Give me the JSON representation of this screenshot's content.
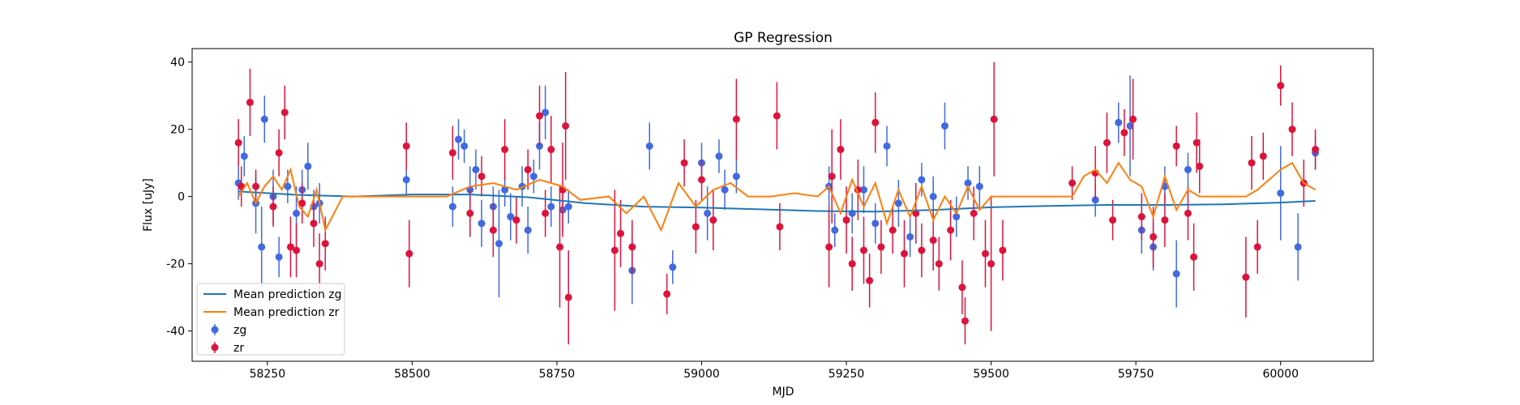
{
  "chart_data": {
    "type": "scatter",
    "title": "GP Regression",
    "xlabel": "MJD",
    "ylabel": "Flux [uJy]",
    "xlim": [
      58120,
      60160
    ],
    "ylim": [
      -49,
      44
    ],
    "xticks": [
      58250,
      58500,
      58750,
      59000,
      59250,
      59500,
      59750,
      60000
    ],
    "yticks": [
      -40,
      -20,
      0,
      20,
      40
    ],
    "grid": false,
    "legend_position": "lower-left",
    "series": [
      {
        "name": "Mean prediction zg",
        "kind": "line",
        "color": "#1f77b4",
        "x": [
          58200,
          58300,
          58400,
          58500,
          58600,
          58700,
          58800,
          58900,
          59000,
          59100,
          59200,
          59300,
          59400,
          59500,
          59600,
          59700,
          59800,
          59900,
          60000,
          60060
        ],
        "y": [
          1.5,
          0.5,
          0.0,
          0.6,
          0.6,
          -0.2,
          -2.0,
          -3.0,
          -3.3,
          -3.8,
          -4.3,
          -4.5,
          -4.0,
          -3.2,
          -2.8,
          -2.5,
          -2.5,
          -2.3,
          -1.8,
          -1.3
        ]
      },
      {
        "name": "Mean prediction zr",
        "kind": "line",
        "color": "#ff7f0e",
        "x": [
          58200,
          58215,
          58230,
          58245,
          58260,
          58275,
          58290,
          58305,
          58320,
          58335,
          58350,
          58380,
          58480,
          58560,
          58600,
          58640,
          58680,
          58720,
          58760,
          58790,
          58840,
          58870,
          58900,
          58930,
          58960,
          58990,
          59020,
          59050,
          59080,
          59120,
          59160,
          59200,
          59220,
          59240,
          59260,
          59280,
          59300,
          59320,
          59340,
          59360,
          59380,
          59400,
          59420,
          59440,
          59460,
          59480,
          59500,
          59530,
          59600,
          59640,
          59660,
          59680,
          59700,
          59720,
          59740,
          59760,
          59780,
          59800,
          59820,
          59840,
          59860,
          59880,
          59940,
          59960,
          60000,
          60020,
          60040,
          60060
        ],
        "y": [
          0,
          4,
          -2,
          3,
          6,
          2,
          8,
          -3,
          -6,
          2,
          -10,
          0,
          0,
          0,
          3,
          4,
          2,
          5,
          3,
          -1,
          0,
          -5,
          0,
          -10,
          4,
          -3,
          2,
          4,
          0,
          0,
          1,
          0,
          3,
          -5,
          5,
          -3,
          4,
          -8,
          2,
          -6,
          3,
          -7,
          0,
          -5,
          3,
          -4,
          0,
          0,
          0,
          0,
          6,
          8,
          4,
          10,
          5,
          3,
          -6,
          6,
          -4,
          2,
          0,
          0,
          0,
          2,
          8,
          10,
          4,
          2
        ]
      },
      {
        "name": "zg",
        "kind": "errorbar",
        "color": "#4169e1",
        "points": [
          [
            58200,
            4,
            5
          ],
          [
            58210,
            12,
            6
          ],
          [
            58230,
            -2,
            9
          ],
          [
            58240,
            -15,
            12
          ],
          [
            58245,
            23,
            7
          ],
          [
            58260,
            0,
            8
          ],
          [
            58270,
            -18,
            6
          ],
          [
            58285,
            3,
            5
          ],
          [
            58300,
            -5,
            8
          ],
          [
            58310,
            2,
            6
          ],
          [
            58320,
            9,
            7
          ],
          [
            58330,
            -3,
            5
          ],
          [
            58340,
            -2,
            6
          ],
          [
            58490,
            5,
            5
          ],
          [
            58570,
            -3,
            6
          ],
          [
            58580,
            17,
            6
          ],
          [
            58590,
            15,
            5
          ],
          [
            58600,
            2,
            7
          ],
          [
            58610,
            8,
            6
          ],
          [
            58620,
            -8,
            7
          ],
          [
            58640,
            -3,
            6
          ],
          [
            58650,
            -14,
            16
          ],
          [
            58660,
            2,
            5
          ],
          [
            58670,
            -6,
            7
          ],
          [
            58690,
            3,
            6
          ],
          [
            58700,
            -10,
            7
          ],
          [
            58710,
            6,
            5
          ],
          [
            58720,
            15,
            7
          ],
          [
            58730,
            25,
            8
          ],
          [
            58740,
            -3,
            6
          ],
          [
            58760,
            -4,
            6
          ],
          [
            58770,
            -3,
            5
          ],
          [
            58880,
            -22,
            10
          ],
          [
            58910,
            15,
            7
          ],
          [
            58950,
            -21,
            5
          ],
          [
            59000,
            10,
            6
          ],
          [
            59010,
            -5,
            8
          ],
          [
            59030,
            12,
            5
          ],
          [
            59040,
            2,
            6
          ],
          [
            59060,
            6,
            5
          ],
          [
            59220,
            3,
            6
          ],
          [
            59230,
            -10,
            5
          ],
          [
            59260,
            -5,
            6
          ],
          [
            59280,
            2,
            7
          ],
          [
            59300,
            -8,
            6
          ],
          [
            59320,
            15,
            6
          ],
          [
            59340,
            -2,
            7
          ],
          [
            59360,
            -12,
            6
          ],
          [
            59380,
            5,
            5
          ],
          [
            59400,
            0,
            6
          ],
          [
            59420,
            21,
            7
          ],
          [
            59440,
            -6,
            6
          ],
          [
            59460,
            4,
            5
          ],
          [
            59480,
            3,
            6
          ],
          [
            59680,
            -1,
            5
          ],
          [
            59720,
            22,
            6
          ],
          [
            59740,
            21,
            15
          ],
          [
            59760,
            -10,
            7
          ],
          [
            59780,
            -15,
            7
          ],
          [
            59800,
            3,
            6
          ],
          [
            59820,
            -23,
            10
          ],
          [
            59840,
            8,
            5
          ],
          [
            60000,
            1,
            14
          ],
          [
            60030,
            -15,
            10
          ],
          [
            60060,
            13,
            5
          ]
        ]
      },
      {
        "name": "zr",
        "kind": "errorbar",
        "color": "#dc143c",
        "points": [
          [
            58200,
            16,
            7
          ],
          [
            58205,
            3,
            6
          ],
          [
            58220,
            28,
            10
          ],
          [
            58230,
            3,
            5
          ],
          [
            58260,
            -3,
            6
          ],
          [
            58270,
            13,
            7
          ],
          [
            58280,
            25,
            8
          ],
          [
            58290,
            -15,
            9
          ],
          [
            58300,
            -16,
            8
          ],
          [
            58310,
            -2,
            6
          ],
          [
            58330,
            -8,
            7
          ],
          [
            58340,
            -20,
            9
          ],
          [
            58350,
            -14,
            8
          ],
          [
            58490,
            15,
            7
          ],
          [
            58495,
            -17,
            10
          ],
          [
            58570,
            13,
            8
          ],
          [
            58600,
            -5,
            7
          ],
          [
            58620,
            6,
            6
          ],
          [
            58640,
            -10,
            8
          ],
          [
            58660,
            14,
            9
          ],
          [
            58680,
            -7,
            7
          ],
          [
            58700,
            8,
            6
          ],
          [
            58720,
            24,
            9
          ],
          [
            58730,
            -5,
            7
          ],
          [
            58740,
            14,
            10
          ],
          [
            58755,
            -15,
            18
          ],
          [
            58760,
            2,
            14
          ],
          [
            58765,
            21,
            16
          ],
          [
            58770,
            -30,
            14
          ],
          [
            58850,
            -16,
            18
          ],
          [
            58860,
            -11,
            10
          ],
          [
            58880,
            -15,
            8
          ],
          [
            58940,
            -29,
            6
          ],
          [
            58970,
            10,
            7
          ],
          [
            58990,
            -9,
            8
          ],
          [
            59000,
            5,
            6
          ],
          [
            59020,
            -7,
            9
          ],
          [
            59060,
            23,
            12
          ],
          [
            59130,
            24,
            10
          ],
          [
            59135,
            -9,
            7
          ],
          [
            59220,
            -15,
            12
          ],
          [
            59225,
            6,
            14
          ],
          [
            59240,
            14,
            9
          ],
          [
            59250,
            -7,
            10
          ],
          [
            59260,
            -20,
            8
          ],
          [
            59270,
            2,
            9
          ],
          [
            59280,
            -16,
            10
          ],
          [
            59290,
            -25,
            8
          ],
          [
            59300,
            22,
            9
          ],
          [
            59310,
            -15,
            8
          ],
          [
            59330,
            -10,
            7
          ],
          [
            59350,
            -17,
            10
          ],
          [
            59370,
            -5,
            9
          ],
          [
            59380,
            -16,
            8
          ],
          [
            59400,
            -13,
            9
          ],
          [
            59410,
            -20,
            8
          ],
          [
            59430,
            -10,
            9
          ],
          [
            59450,
            -27,
            8
          ],
          [
            59455,
            -37,
            7
          ],
          [
            59470,
            -5,
            8
          ],
          [
            59490,
            -17,
            10
          ],
          [
            59500,
            -20,
            20
          ],
          [
            59505,
            23,
            17
          ],
          [
            59520,
            -16,
            9
          ],
          [
            59640,
            4,
            5
          ],
          [
            59680,
            7,
            8
          ],
          [
            59700,
            16,
            9
          ],
          [
            59710,
            -7,
            6
          ],
          [
            59730,
            19,
            7
          ],
          [
            59745,
            23,
            12
          ],
          [
            59760,
            -6,
            7
          ],
          [
            59780,
            -12,
            9
          ],
          [
            59800,
            -7,
            8
          ],
          [
            59820,
            15,
            6
          ],
          [
            59840,
            -5,
            8
          ],
          [
            59850,
            -18,
            10
          ],
          [
            59855,
            16,
            9
          ],
          [
            59860,
            9,
            8
          ],
          [
            59940,
            -24,
            12
          ],
          [
            59950,
            10,
            8
          ],
          [
            59960,
            -15,
            8
          ],
          [
            59970,
            12,
            7
          ],
          [
            60000,
            33,
            6
          ],
          [
            60020,
            20,
            8
          ],
          [
            60040,
            4,
            7
          ],
          [
            60060,
            14,
            6
          ]
        ]
      }
    ]
  }
}
